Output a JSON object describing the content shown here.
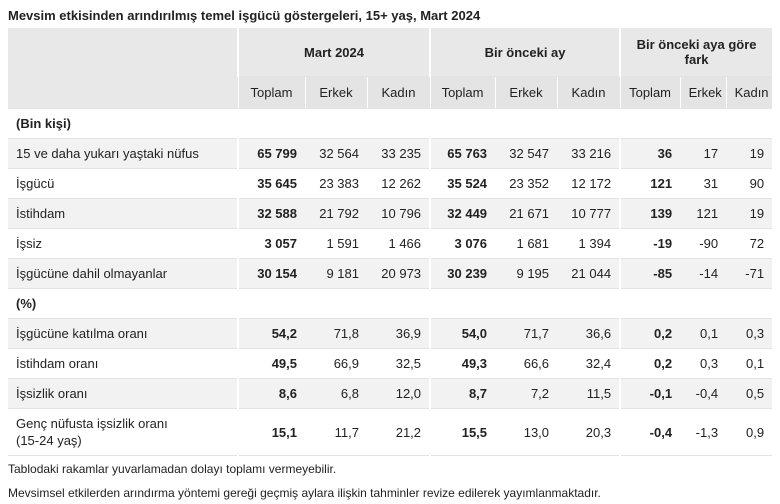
{
  "title": "Mevsim etkisinden arındırılmış temel işgücü göstergeleri, 15+ yaş, Mart 2024",
  "table": {
    "groups": [
      "Mart 2024",
      "Bir önceki ay",
      "Bir önceki aya göre fark"
    ],
    "subheaders": [
      "Toplam",
      "Erkek",
      "Kadın",
      "Toplam",
      "Erkek",
      "Kadın",
      "Toplam",
      "Erkek",
      "Kadın"
    ],
    "sections": [
      {
        "label": "(Bin kişi)",
        "rows": [
          [
            "15 ve daha yukarı yaştaki nüfus",
            "65 799",
            "32 564",
            "33 235",
            "65 763",
            "32 547",
            "33 216",
            "36",
            "17",
            "19"
          ],
          [
            "İşgücü",
            "35 645",
            "23 383",
            "12 262",
            "35 524",
            "23 352",
            "12 172",
            "121",
            "31",
            "90"
          ],
          [
            "İstihdam",
            "32 588",
            "21 792",
            "10 796",
            "32 449",
            "21 671",
            "10 777",
            "139",
            "121",
            "19"
          ],
          [
            "İşsiz",
            "3 057",
            "1 591",
            "1 466",
            "3 076",
            "1 681",
            "1 394",
            "-19",
            "-90",
            "72"
          ],
          [
            "İşgücüne dahil olmayanlar",
            "30 154",
            "9 181",
            "20 973",
            "30 239",
            "9 195",
            "21 044",
            "-85",
            "-14",
            "-71"
          ]
        ]
      },
      {
        "label": "(%)",
        "rows": [
          [
            "İşgücüne katılma oranı",
            "54,2",
            "71,8",
            "36,9",
            "54,0",
            "71,7",
            "36,6",
            "0,2",
            "0,1",
            "0,3"
          ],
          [
            "İstihdam oranı",
            "49,5",
            "66,9",
            "32,5",
            "49,3",
            "66,6",
            "32,4",
            "0,2",
            "0,3",
            "0,1"
          ],
          [
            "İşsizlik oranı",
            "8,6",
            "6,8",
            "12,0",
            "8,7",
            "7,2",
            "11,5",
            "-0,1",
            "-0,4",
            "0,5"
          ],
          [
            "Genç nüfusta işsizlik oranı\n(15-24 yaş)",
            "15,1",
            "11,7",
            "21,2",
            "15,5",
            "13,0",
            "20,3",
            "-0,4",
            "-1,3",
            "0,9"
          ]
        ]
      }
    ]
  },
  "notes": [
    "Tablodaki rakamlar yuvarlamadan dolayı toplamı vermeyebilir.",
    "Mevsimsel etkilerden arındırma yöntemi gereği geçmiş aylara ilişkin tahminler revize edilerek yayımlanmaktadır."
  ]
}
